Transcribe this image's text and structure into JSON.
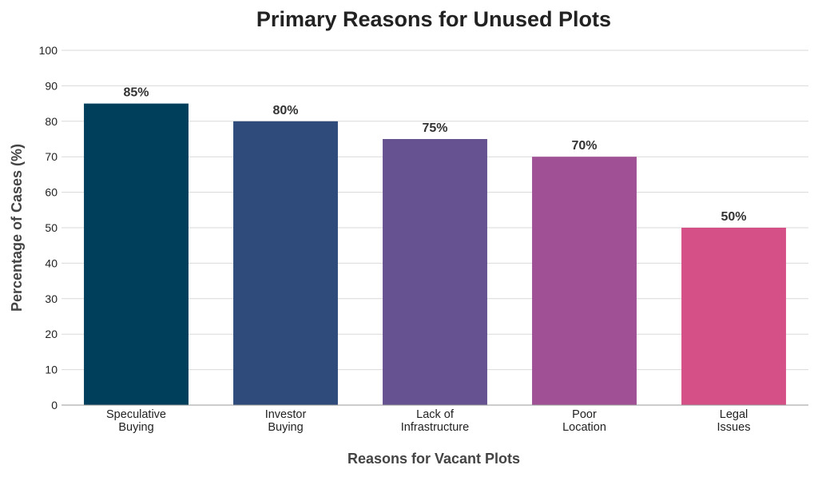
{
  "chart_data": {
    "type": "bar",
    "title": "Primary Reasons for Unused Plots",
    "xlabel": "Reasons for Vacant Plots",
    "ylabel": "Percentage of Cases (%)",
    "categories": [
      [
        "Speculative",
        "Buying"
      ],
      [
        "Investor",
        "Buying"
      ],
      [
        "Lack of",
        "Infrastructure"
      ],
      [
        "Poor",
        "Location"
      ],
      [
        "Legal",
        "Issues"
      ]
    ],
    "values": [
      85,
      80,
      75,
      70,
      50
    ],
    "value_labels": [
      "85%",
      "80%",
      "75%",
      "70%",
      "50%"
    ],
    "colors": [
      "#003f5c",
      "#2f4b7c",
      "#665191",
      "#a05195",
      "#d45087"
    ],
    "ylim": [
      0,
      100
    ],
    "yticks": [
      0,
      10,
      20,
      30,
      40,
      50,
      60,
      70,
      80,
      90,
      100
    ],
    "grid": true,
    "legend": false
  }
}
